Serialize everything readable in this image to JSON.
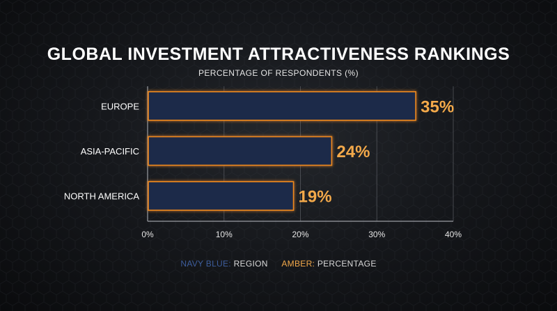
{
  "header": {
    "title": "GLOBAL INVESTMENT ATTRACTIVENESS RANKINGS",
    "subtitle": "PERCENTAGE OF RESPONDENTS (%)"
  },
  "legend": {
    "navy_key": "NAVY BLUE:",
    "navy_value": "REGION",
    "amber_key": "AMBER:",
    "amber_value": "PERCENTAGE"
  },
  "colors": {
    "bar_fill": "#1b2a4a",
    "bar_stroke": "#f08a1c",
    "value_label": "#f3a94a",
    "grid": "#5a5d63",
    "axis": "#9a9da3",
    "tick_text": "#e6e6e6"
  },
  "chart_data": {
    "type": "bar",
    "orientation": "horizontal",
    "categories": [
      "EUROPE",
      "ASIA-PACIFIC",
      "NORTH AMERICA"
    ],
    "values": [
      35,
      24,
      19
    ],
    "value_labels": [
      "35%",
      "24%",
      "19%"
    ],
    "xlim": [
      0,
      40
    ],
    "xticks": [
      0,
      10,
      20,
      30,
      40
    ],
    "xtick_labels": [
      "0%",
      "10%",
      "20%",
      "30%",
      "40%"
    ],
    "grid": true
  }
}
